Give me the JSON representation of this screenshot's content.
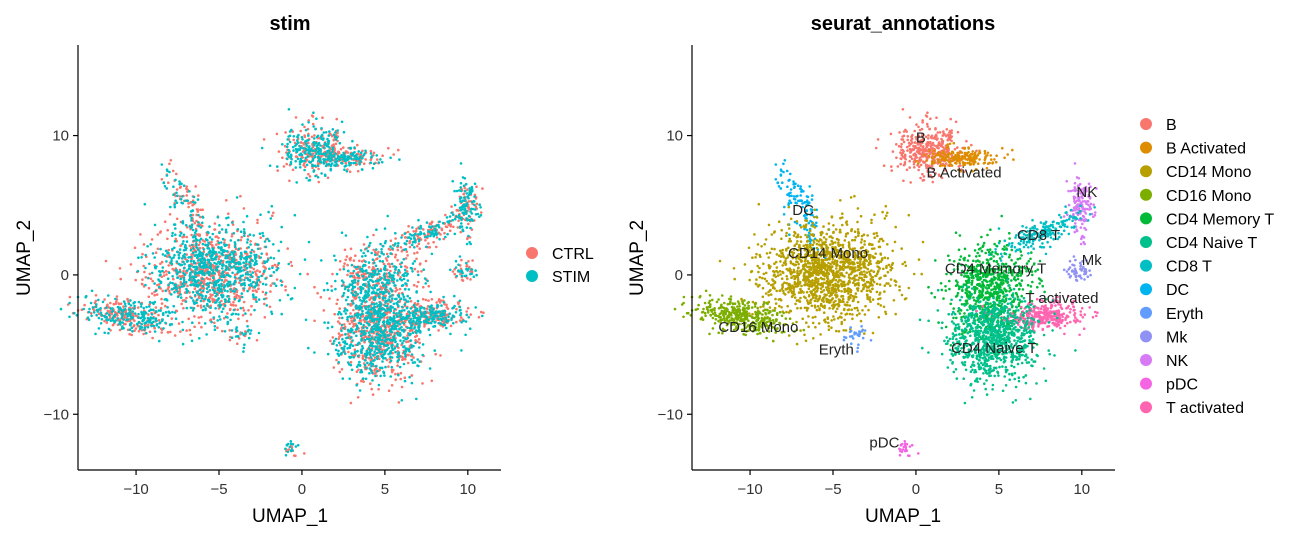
{
  "chart_data": [
    {
      "type": "scatter",
      "title": "stim",
      "xlabel": "UMAP_1",
      "ylabel": "UMAP_2",
      "xlim": [
        -13.5,
        12
      ],
      "ylim": [
        -14,
        16.5
      ],
      "xticks": [
        -10,
        -5,
        0,
        5,
        10
      ],
      "yticks": [
        -10,
        0,
        10
      ],
      "xtick_labels": [
        "−10",
        "−5",
        "0",
        "5",
        "10"
      ],
      "ytick_labels": [
        "−10",
        "0",
        "10"
      ],
      "grid": false,
      "legend_position": "right",
      "series": [
        {
          "name": "CTRL",
          "color": "#F8766D"
        },
        {
          "name": "STIM",
          "color": "#00BFC4"
        }
      ]
    },
    {
      "type": "scatter",
      "title": "seurat_annotations",
      "xlabel": "UMAP_1",
      "ylabel": "UMAP_2",
      "xlim": [
        -13.5,
        12
      ],
      "ylim": [
        -14,
        16.5
      ],
      "xticks": [
        -10,
        -5,
        0,
        5,
        10
      ],
      "yticks": [
        -10,
        0,
        10
      ],
      "xtick_labels": [
        "−10",
        "−5",
        "0",
        "5",
        "10"
      ],
      "ytick_labels": [
        "−10",
        "0",
        "10"
      ],
      "grid": false,
      "legend_position": "right",
      "series": [
        {
          "name": "B",
          "color": "#F8766D"
        },
        {
          "name": "B Activated",
          "color": "#DE8C00"
        },
        {
          "name": "CD14 Mono",
          "color": "#B79F00"
        },
        {
          "name": "CD16 Mono",
          "color": "#7CAE00"
        },
        {
          "name": "CD4 Memory T",
          "color": "#00BA38"
        },
        {
          "name": "CD4 Naive T",
          "color": "#00C08B"
        },
        {
          "name": "CD8 T",
          "color": "#00BFC4"
        },
        {
          "name": "DC",
          "color": "#00B4F0"
        },
        {
          "name": "Eryth",
          "color": "#619CFF"
        },
        {
          "name": "Mk",
          "color": "#8F91F5"
        },
        {
          "name": "NK",
          "color": "#D77BF5"
        },
        {
          "name": "pDC",
          "color": "#F564E3"
        },
        {
          "name": "T activated",
          "color": "#FF64B0"
        }
      ],
      "cluster_labels": [
        {
          "text": "B",
          "x": 0.3,
          "y": 9.5
        },
        {
          "text": "B Activated",
          "x": 2.9,
          "y": 7.0
        },
        {
          "text": "DC",
          "x": -6.8,
          "y": 4.3
        },
        {
          "text": "CD14 Mono",
          "x": -5.3,
          "y": 1.2
        },
        {
          "text": "CD16 Mono",
          "x": -9.5,
          "y": -4.1
        },
        {
          "text": "Eryth",
          "x": -4.8,
          "y": -5.7
        },
        {
          "text": "pDC",
          "x": -1.9,
          "y": -12.4
        },
        {
          "text": "NK",
          "x": 10.3,
          "y": 5.6
        },
        {
          "text": "CD8 T",
          "x": 7.4,
          "y": 2.5
        },
        {
          "text": "Mk",
          "x": 10.6,
          "y": 0.7
        },
        {
          "text": "CD4 Memory T",
          "x": 4.8,
          "y": 0.1
        },
        {
          "text": "T activated",
          "x": 8.8,
          "y": -2.0
        },
        {
          "text": "CD4 Naive T",
          "x": 4.7,
          "y": -5.6
        }
      ]
    }
  ]
}
